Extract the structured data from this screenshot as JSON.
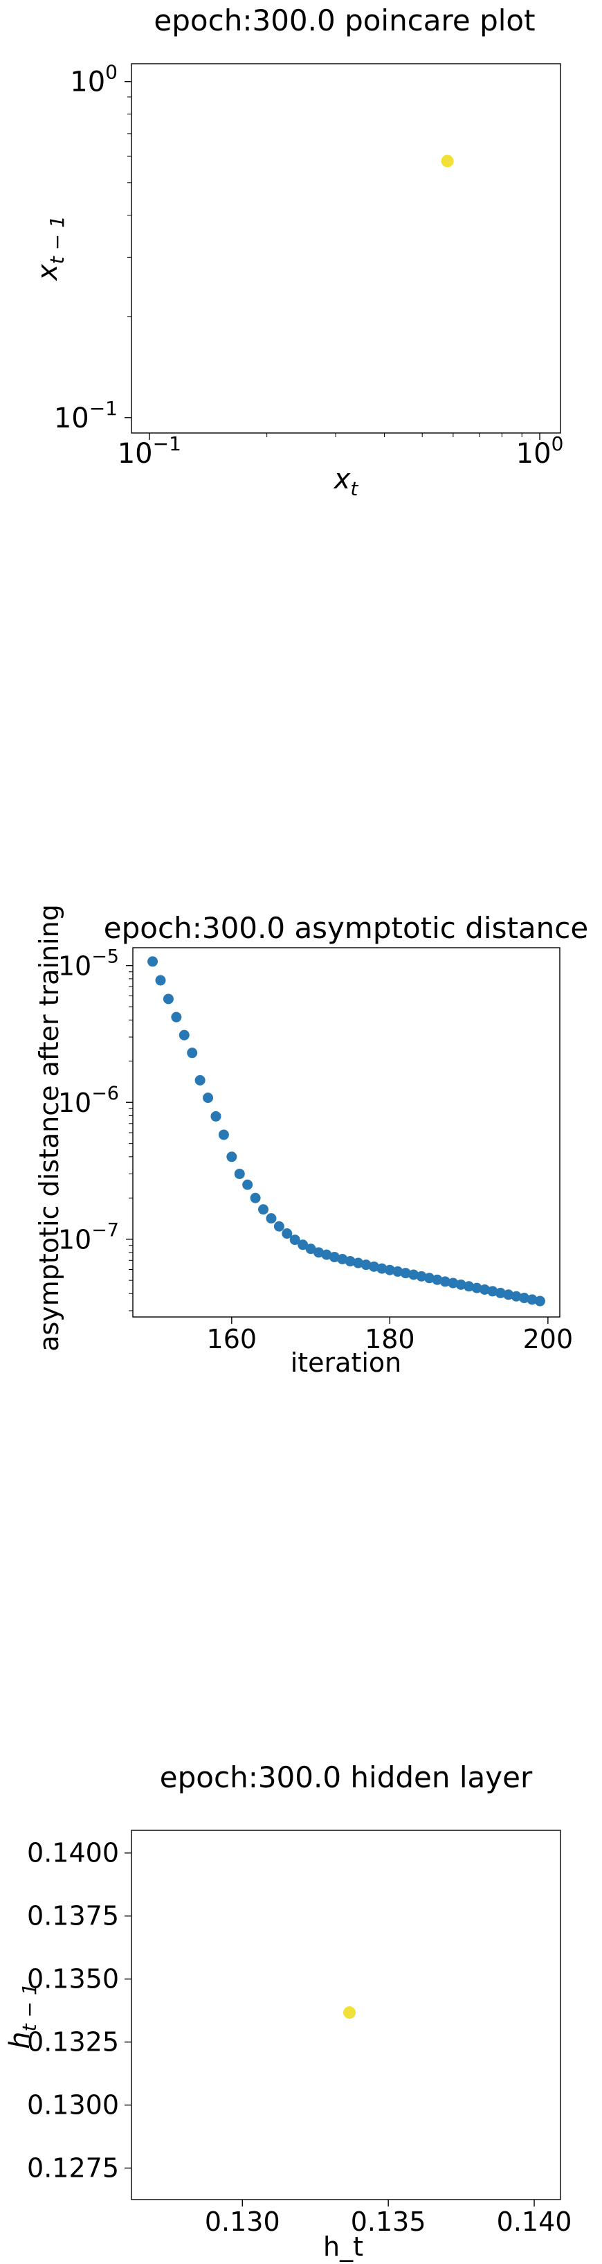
{
  "chart_data": [
    {
      "type": "scatter",
      "title": "epoch:300.0 poincare plot",
      "xlabel_base": "x",
      "xlabel_sub": "t",
      "ylabel_base": "x",
      "ylabel_sub": "t − 1",
      "xscale": "log",
      "yscale": "log",
      "xlim": [
        0.09,
        1.13
      ],
      "ylim": [
        0.09,
        1.13
      ],
      "xticks": [
        {
          "value": 0.1,
          "base": "10",
          "exp": "−1"
        },
        {
          "value": 1,
          "base": "10",
          "exp": "0"
        }
      ],
      "yticks": [
        {
          "value": 0.1,
          "base": "10",
          "exp": "−1"
        },
        {
          "value": 1,
          "base": "10",
          "exp": "0"
        }
      ],
      "point_color": "#f2e03a",
      "points": [
        {
          "x": 0.58,
          "y": 0.58
        }
      ]
    },
    {
      "type": "scatter",
      "title": "epoch:300.0 asymptotic distance",
      "xlabel": "iteration",
      "ylabel": "asymptotic distance after training",
      "yscale": "log",
      "xlim": [
        147.5,
        201.5
      ],
      "ylim": [
        2.7e-08,
        1.35e-05
      ],
      "xticks": [
        {
          "value": 160,
          "label": "160"
        },
        {
          "value": 180,
          "label": "180"
        },
        {
          "value": 200,
          "label": "200"
        }
      ],
      "yticks": [
        {
          "value": 1e-07,
          "base": "10",
          "exp": "−7"
        },
        {
          "value": 1e-06,
          "base": "10",
          "exp": "−6"
        },
        {
          "value": 1e-05,
          "base": "10",
          "exp": "−5"
        }
      ],
      "point_color": "#2878b5",
      "x": [
        150,
        151,
        152,
        153,
        154,
        155,
        156,
        157,
        158,
        159,
        160,
        161,
        162,
        163,
        164,
        165,
        166,
        167,
        168,
        169,
        170,
        171,
        172,
        173,
        174,
        175,
        176,
        177,
        178,
        179,
        180,
        181,
        182,
        183,
        184,
        185,
        186,
        187,
        188,
        189,
        190,
        191,
        192,
        193,
        194,
        195,
        196,
        197,
        198,
        199
      ],
      "y": [
        1.07e-05,
        7.8e-06,
        5.7e-06,
        4.2e-06,
        3.1e-06,
        2.3e-06,
        1.45e-06,
        1.08e-06,
        7.9e-07,
        5.8e-07,
        4e-07,
        3e-07,
        2.5e-07,
        2e-07,
        1.65e-07,
        1.42e-07,
        1.24e-07,
        1.1e-07,
        9.9e-08,
        9.1e-08,
        8.5e-08,
        8e-08,
        7.7e-08,
        7.4e-08,
        7.15e-08,
        6.9e-08,
        6.7e-08,
        6.5e-08,
        6.3e-08,
        6.1e-08,
        5.95e-08,
        5.8e-08,
        5.65e-08,
        5.5e-08,
        5.35e-08,
        5.2e-08,
        5.05e-08,
        4.9e-08,
        4.78e-08,
        4.65e-08,
        4.52e-08,
        4.4e-08,
        4.28e-08,
        4.16e-08,
        4.04e-08,
        3.93e-08,
        3.82e-08,
        3.72e-08,
        3.62e-08,
        3.53e-08
      ]
    },
    {
      "type": "scatter",
      "title": "epoch:300.0 hidden layer",
      "xlabel": "h_t",
      "ylabel_base": "h",
      "ylabel_sub": "t − 1",
      "xlim": [
        0.1262,
        0.1409
      ],
      "ylim": [
        0.12625,
        0.1409
      ],
      "xticks": [
        {
          "value": 0.13,
          "label": "0.130"
        },
        {
          "value": 0.135,
          "label": "0.135"
        },
        {
          "value": 0.14,
          "label": "0.140"
        }
      ],
      "yticks": [
        {
          "value": 0.1275,
          "label": "0.1275"
        },
        {
          "value": 0.13,
          "label": "0.1300"
        },
        {
          "value": 0.1325,
          "label": "0.1325"
        },
        {
          "value": 0.135,
          "label": "0.1350"
        },
        {
          "value": 0.1375,
          "label": "0.1375"
        },
        {
          "value": 0.14,
          "label": "0.1400"
        }
      ],
      "point_color": "#f2e03a",
      "points": [
        {
          "x": 0.13367,
          "y": 0.13367
        }
      ]
    }
  ]
}
